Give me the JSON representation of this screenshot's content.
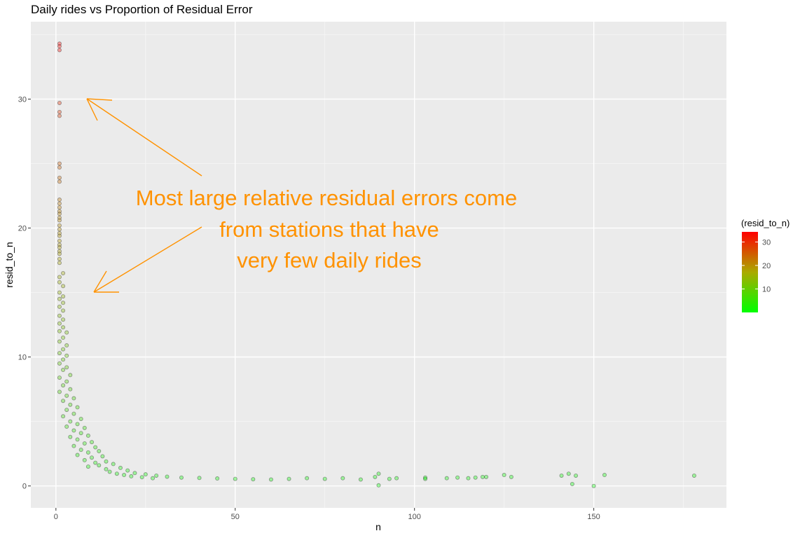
{
  "chart_data": {
    "type": "scatter",
    "title": "Daily rides vs Proportion of Residual Error",
    "xlabel": "n",
    "ylabel": "resid_to_n",
    "xlim": [
      -7,
      187
    ],
    "ylim": [
      -1.7,
      36
    ],
    "x_ticks": [
      0,
      50,
      100,
      150
    ],
    "y_ticks": [
      0,
      10,
      20,
      30
    ],
    "x_tick_labels": [
      "0",
      "50",
      "100",
      "150"
    ],
    "y_tick_labels": [
      "0",
      "10",
      "20",
      "30"
    ],
    "grid": true,
    "legend": {
      "title": "(resid_to_n)",
      "position": "right",
      "ticks": [
        10,
        20,
        30
      ],
      "tick_labels": [
        "10",
        "20",
        "30"
      ],
      "range": [
        0,
        34.3
      ],
      "colors": [
        "#00FF00",
        "#FF0000"
      ]
    },
    "annotation": {
      "lines": [
        "Most large relative residual errors come",
        "from stations that have",
        "very few daily rides"
      ],
      "color": "#FF9200"
    },
    "points": [
      [
        1,
        34.3
      ],
      [
        1,
        34.1
      ],
      [
        1,
        33.8
      ],
      [
        1,
        29.7
      ],
      [
        1,
        29.0
      ],
      [
        1,
        28.7
      ],
      [
        1,
        25.0
      ],
      [
        1,
        24.7
      ],
      [
        1,
        23.9
      ],
      [
        1,
        23.6
      ],
      [
        1,
        22.2
      ],
      [
        1,
        21.9
      ],
      [
        1,
        21.6
      ],
      [
        1,
        21.3
      ],
      [
        1,
        21.1
      ],
      [
        1,
        20.8
      ],
      [
        1,
        20.6
      ],
      [
        1,
        20.2
      ],
      [
        1,
        19.9
      ],
      [
        1,
        19.6
      ],
      [
        1,
        19.4
      ],
      [
        1,
        19.0
      ],
      [
        1,
        18.7
      ],
      [
        1,
        18.5
      ],
      [
        1,
        18.2
      ],
      [
        1,
        18.0
      ],
      [
        1,
        17.6
      ],
      [
        1,
        17.3
      ],
      [
        2,
        16.5
      ],
      [
        1,
        16.2
      ],
      [
        1,
        15.8
      ],
      [
        2,
        15.5
      ],
      [
        1,
        15.0
      ],
      [
        2,
        14.7
      ],
      [
        1,
        14.5
      ],
      [
        2,
        14.2
      ],
      [
        1,
        13.9
      ],
      [
        2,
        13.6
      ],
      [
        1,
        13.2
      ],
      [
        2,
        12.9
      ],
      [
        1,
        12.6
      ],
      [
        2,
        12.3
      ],
      [
        1,
        12.0
      ],
      [
        3,
        11.9
      ],
      [
        2,
        11.5
      ],
      [
        1,
        11.2
      ],
      [
        3,
        10.9
      ],
      [
        2,
        10.6
      ],
      [
        1,
        10.3
      ],
      [
        3,
        10.1
      ],
      [
        2,
        9.8
      ],
      [
        1,
        9.5
      ],
      [
        3,
        9.2
      ],
      [
        2,
        9.0
      ],
      [
        4,
        8.6
      ],
      [
        1,
        8.4
      ],
      [
        3,
        8.1
      ],
      [
        2,
        7.8
      ],
      [
        4,
        7.5
      ],
      [
        1,
        7.3
      ],
      [
        3,
        7.0
      ],
      [
        5,
        6.8
      ],
      [
        2,
        6.6
      ],
      [
        4,
        6.3
      ],
      [
        6,
        6.1
      ],
      [
        3,
        5.9
      ],
      [
        5,
        5.6
      ],
      [
        2,
        5.4
      ],
      [
        7,
        5.2
      ],
      [
        4,
        5.0
      ],
      [
        6,
        4.8
      ],
      [
        3,
        4.6
      ],
      [
        8,
        4.5
      ],
      [
        5,
        4.3
      ],
      [
        7,
        4.1
      ],
      [
        9,
        3.9
      ],
      [
        4,
        3.8
      ],
      [
        6,
        3.6
      ],
      [
        10,
        3.4
      ],
      [
        8,
        3.3
      ],
      [
        5,
        3.1
      ],
      [
        11,
        3.0
      ],
      [
        7,
        2.8
      ],
      [
        12,
        2.7
      ],
      [
        9,
        2.6
      ],
      [
        6,
        2.4
      ],
      [
        13,
        2.3
      ],
      [
        10,
        2.2
      ],
      [
        8,
        2.0
      ],
      [
        14,
        1.9
      ],
      [
        11,
        1.8
      ],
      [
        16,
        1.7
      ],
      [
        12,
        1.6
      ],
      [
        9,
        1.5
      ],
      [
        18,
        1.4
      ],
      [
        14,
        1.3
      ],
      [
        20,
        1.2
      ],
      [
        15,
        1.1
      ],
      [
        22,
        1.0
      ],
      [
        17,
        0.95
      ],
      [
        25,
        0.9
      ],
      [
        19,
        0.85
      ],
      [
        28,
        0.8
      ],
      [
        21,
        0.75
      ],
      [
        31,
        0.72
      ],
      [
        24,
        0.68
      ],
      [
        35,
        0.65
      ],
      [
        27,
        0.6
      ],
      [
        40,
        0.62
      ],
      [
        45,
        0.58
      ],
      [
        50,
        0.55
      ],
      [
        55,
        0.52
      ],
      [
        60,
        0.5
      ],
      [
        65,
        0.55
      ],
      [
        70,
        0.6
      ],
      [
        75,
        0.55
      ],
      [
        80,
        0.6
      ],
      [
        85,
        0.5
      ],
      [
        89,
        0.7
      ],
      [
        90,
        0.95
      ],
      [
        90,
        0.05
      ],
      [
        93,
        0.55
      ],
      [
        95,
        0.6
      ],
      [
        103,
        0.65
      ],
      [
        103,
        0.55
      ],
      [
        109,
        0.6
      ],
      [
        112,
        0.65
      ],
      [
        115,
        0.6
      ],
      [
        117,
        0.65
      ],
      [
        119,
        0.7
      ],
      [
        120,
        0.7
      ],
      [
        125,
        0.85
      ],
      [
        127,
        0.7
      ],
      [
        141,
        0.8
      ],
      [
        143,
        0.95
      ],
      [
        144,
        0.15
      ],
      [
        145,
        0.8
      ],
      [
        150,
        0.0
      ],
      [
        153,
        0.85
      ],
      [
        178,
        0.8
      ]
    ]
  }
}
